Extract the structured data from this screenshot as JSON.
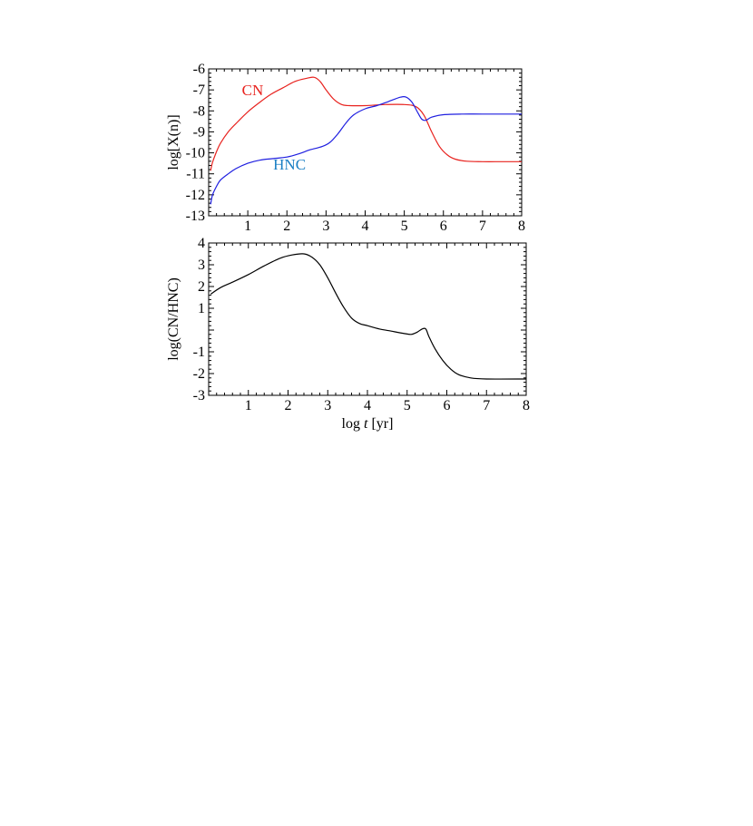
{
  "chart_data": [
    {
      "type": "line",
      "xlabel": "",
      "ylabel": "log[X(n)]",
      "xlim": [
        0,
        8
      ],
      "ylim": [
        -13,
        -6
      ],
      "xticks": [
        "1",
        "2",
        "3",
        "4",
        "5",
        "6",
        "7",
        "8"
      ],
      "yticks": [
        "-6",
        "-7",
        "-8",
        "-9",
        "-10",
        "-11",
        "-12",
        "-13"
      ],
      "colors": {
        "CN": "#e8231f",
        "HNC": "#1f1fe0",
        "hnc_label": "#1a7fc4"
      },
      "series": [
        {
          "name": "CN",
          "x": [
            0.05,
            0.1,
            0.2,
            0.3,
            0.5,
            0.7,
            1.0,
            1.3,
            1.6,
            1.9,
            2.2,
            2.5,
            2.7,
            2.85,
            3.0,
            3.2,
            3.4,
            3.6,
            4.0,
            4.5,
            5.0,
            5.3,
            5.5,
            5.7,
            5.9,
            6.1,
            6.3,
            6.6,
            7.0,
            7.5,
            8.0
          ],
          "y": [
            -10.85,
            -10.45,
            -9.95,
            -9.55,
            -9.0,
            -8.6,
            -8.05,
            -7.6,
            -7.2,
            -6.9,
            -6.6,
            -6.45,
            -6.4,
            -6.6,
            -7.0,
            -7.45,
            -7.7,
            -7.75,
            -7.75,
            -7.7,
            -7.7,
            -7.8,
            -8.2,
            -9.0,
            -9.7,
            -10.1,
            -10.3,
            -10.4,
            -10.42,
            -10.42,
            -10.42
          ]
        },
        {
          "name": "HNC",
          "x": [
            0.05,
            0.1,
            0.2,
            0.3,
            0.5,
            0.7,
            1.0,
            1.3,
            1.6,
            2.0,
            2.3,
            2.6,
            2.9,
            3.1,
            3.3,
            3.5,
            3.7,
            4.0,
            4.3,
            4.6,
            4.9,
            5.05,
            5.2,
            5.35,
            5.45,
            5.55,
            5.7,
            6.0,
            6.5,
            7.0,
            8.0
          ],
          "y": [
            -12.45,
            -12.0,
            -11.6,
            -11.3,
            -11.0,
            -10.75,
            -10.5,
            -10.35,
            -10.28,
            -10.2,
            -10.05,
            -9.85,
            -9.7,
            -9.5,
            -9.1,
            -8.6,
            -8.2,
            -7.9,
            -7.75,
            -7.55,
            -7.35,
            -7.35,
            -7.6,
            -8.1,
            -8.4,
            -8.45,
            -8.3,
            -8.18,
            -8.15,
            -8.15,
            -8.15
          ]
        }
      ],
      "annotations": [
        {
          "text": "CN",
          "x": 0.85,
          "y": -7.25
        },
        {
          "text": "HNC",
          "x": 1.65,
          "y": -10.8
        }
      ]
    },
    {
      "type": "line",
      "xlabel": "log t [yr]",
      "ylabel": "log(CN/HNC)",
      "xlim": [
        0,
        8
      ],
      "ylim": [
        -3,
        4
      ],
      "xticks": [
        "1",
        "2",
        "3",
        "4",
        "5",
        "6",
        "7",
        "8"
      ],
      "yticks": [
        "4",
        "3",
        "2",
        "1",
        "-1",
        "-2",
        "-3"
      ],
      "yticks_values": [
        4,
        3,
        2,
        1,
        -1,
        -2,
        -3
      ],
      "colors": {
        "ratio": "#000000"
      },
      "series": [
        {
          "x": [
            0.05,
            0.3,
            0.6,
            1.0,
            1.4,
            1.8,
            2.1,
            2.4,
            2.6,
            2.8,
            3.0,
            3.2,
            3.4,
            3.6,
            3.8,
            4.0,
            4.3,
            4.6,
            4.9,
            5.1,
            5.25,
            5.38,
            5.47,
            5.55,
            5.7,
            5.9,
            6.1,
            6.3,
            6.6,
            7.0,
            8.0
          ],
          "y": [
            1.65,
            1.95,
            2.2,
            2.55,
            2.95,
            3.3,
            3.45,
            3.5,
            3.35,
            3.0,
            2.4,
            1.7,
            1.05,
            0.55,
            0.3,
            0.2,
            0.05,
            -0.05,
            -0.15,
            -0.2,
            -0.1,
            0.05,
            0.05,
            -0.3,
            -0.85,
            -1.4,
            -1.8,
            -2.05,
            -2.2,
            -2.25,
            -2.25
          ]
        }
      ]
    }
  ]
}
